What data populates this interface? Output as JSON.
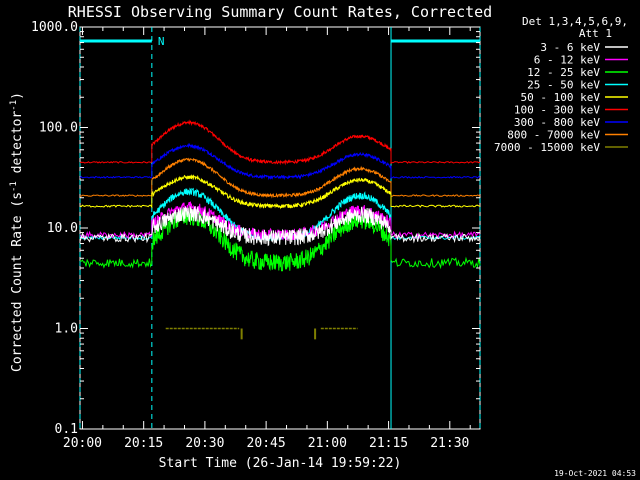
{
  "chart_data": {
    "type": "line",
    "title": "RHESSI Observing Summary Count Rates, Corrected",
    "xlabel": "Start Time (26-Jan-14 19:59:22)",
    "ylabel_main": "Corrected Count Rate (s",
    "ylabel_sup1": "-1",
    "ylabel_mid": " detector",
    "ylabel_sup2": "-1",
    "ylabel_end": ")",
    "yscale": "log",
    "ylim": [
      0.1,
      1000
    ],
    "xlim_minutes": [
      0,
      98
    ],
    "x_ticks": [
      {
        "label": "20:00",
        "min": 0.6
      },
      {
        "label": "20:15",
        "min": 15.6
      },
      {
        "label": "20:30",
        "min": 30.6
      },
      {
        "label": "20:45",
        "min": 45.6
      },
      {
        "label": "21:00",
        "min": 60.6
      },
      {
        "label": "21:15",
        "min": 75.6
      },
      {
        "label": "21:30",
        "min": 90.6
      }
    ],
    "y_ticks": [
      {
        "label": "1000.0",
        "value": 1000
      },
      {
        "label": "100.0",
        "value": 100
      },
      {
        "label": "10.0",
        "value": 10
      },
      {
        "label": "1.0",
        "value": 1
      },
      {
        "label": "0.1",
        "value": 0.1
      }
    ],
    "legend_header": [
      "Det 1,3,4,5,6,9,",
      "Att 1"
    ],
    "night_marker": "N",
    "eclipse_minutes": [
      [
        0,
        17.6
      ],
      [
        76.2,
        98
      ]
    ],
    "series": [
      {
        "name": "3 - 6 keV",
        "color": "#ffffff",
        "base": 8.0,
        "peak1": 14,
        "peak2": 13.5,
        "noise": 0.08
      },
      {
        "name": "6 - 12 keV",
        "color": "#ff00ff",
        "base": 8.5,
        "peak1": 16,
        "peak2": 15,
        "noise": 0.06
      },
      {
        "name": "12 - 25 keV",
        "color": "#00ff00",
        "base": 4.5,
        "peak1": 13,
        "peak2": 12,
        "noise": 0.09
      },
      {
        "name": "25 - 50 keV",
        "color": "#00ffff",
        "base": 8.0,
        "peak1": 23,
        "peak2": 21,
        "noise": 0.035
      },
      {
        "name": "50 - 100 keV",
        "color": "#ffff00",
        "base": 16.5,
        "peak1": 32,
        "peak2": 30,
        "noise": 0.02
      },
      {
        "name": "100 - 300 keV",
        "color": "#ff0000",
        "base": 45,
        "peak1": 112,
        "peak2": 82,
        "noise": 0.015
      },
      {
        "name": "300 - 800 keV",
        "color": "#0000ff",
        "base": 32,
        "peak1": 66,
        "peak2": 54,
        "noise": 0.015
      },
      {
        "name": "800 - 7000 keV",
        "color": "#ff8000",
        "base": 21,
        "peak1": 48,
        "peak2": 39,
        "noise": 0.015
      },
      {
        "name": "7000 - 15000 keV",
        "color": "#808000",
        "base": 1.0,
        "peak1": 1.0,
        "peak2": 1.0,
        "noise": 0.0
      }
    ],
    "peaks_minutes": [
      26.6,
      68.6
    ]
  },
  "timestamp": "19-Oct-2021 04:53"
}
